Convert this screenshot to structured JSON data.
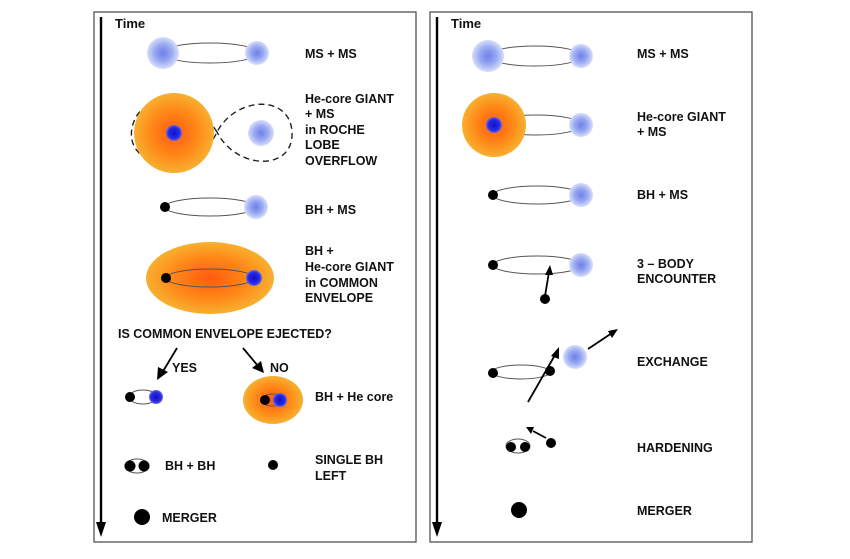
{
  "left_panel": {
    "time_label": "Time",
    "stages": [
      {
        "label_lines": [
          "MS + MS"
        ]
      },
      {
        "label_lines": [
          "He-core GIANT",
          "+ MS",
          "in ROCHE",
          "LOBE",
          "OVERFLOW"
        ]
      },
      {
        "label_lines": [
          "BH + MS"
        ]
      },
      {
        "label_lines": [
          "BH +",
          "He-core GIANT",
          "in COMMON",
          "ENVELOPE"
        ]
      }
    ],
    "question": "IS COMMON ENVELOPE EJECTED?",
    "yes_label": "YES",
    "no_label": "NO",
    "bh_he_core": "BH + He core",
    "bh_bh": "BH + BH",
    "single_bh_lines": [
      "SINGLE BH",
      "LEFT"
    ],
    "merger": "MERGER"
  },
  "right_panel": {
    "time_label": "Time",
    "stages": [
      {
        "label_lines": [
          "MS + MS"
        ]
      },
      {
        "label_lines": [
          "He-core GIANT",
          "+ MS"
        ]
      },
      {
        "label_lines": [
          "BH + MS"
        ]
      },
      {
        "label_lines": [
          "3 –  BODY",
          "ENCOUNTER"
        ]
      },
      {
        "label_lines": [
          "EXCHANGE"
        ]
      },
      {
        "label_lines": [
          "HARDENING"
        ]
      },
      {
        "label_lines": [
          "MERGER"
        ]
      }
    ]
  },
  "colors": {
    "ms_star": "#8fa3f0",
    "giant_outer": "#f5a020",
    "giant_inner": "#ff6a10",
    "he_core": "#2020d8",
    "black_hole": "#000000"
  }
}
